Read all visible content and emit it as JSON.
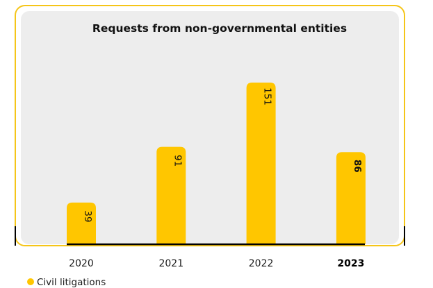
{
  "chart_data": {
    "type": "bar",
    "title": "Requests from non-governmental entities",
    "categories": [
      "2020",
      "2021",
      "2022",
      "2023"
    ],
    "series": [
      {
        "name": "Civil litigations",
        "values": [
          39,
          91,
          151,
          86
        ]
      }
    ],
    "highlight_category": "2023",
    "ylim": [
      0,
      160
    ],
    "grid": false,
    "legend": "bottom-left",
    "colors": {
      "bar": "#FFC600",
      "frame": "#F5C518",
      "panel": "#EDEDED",
      "axis": "#000000"
    }
  }
}
